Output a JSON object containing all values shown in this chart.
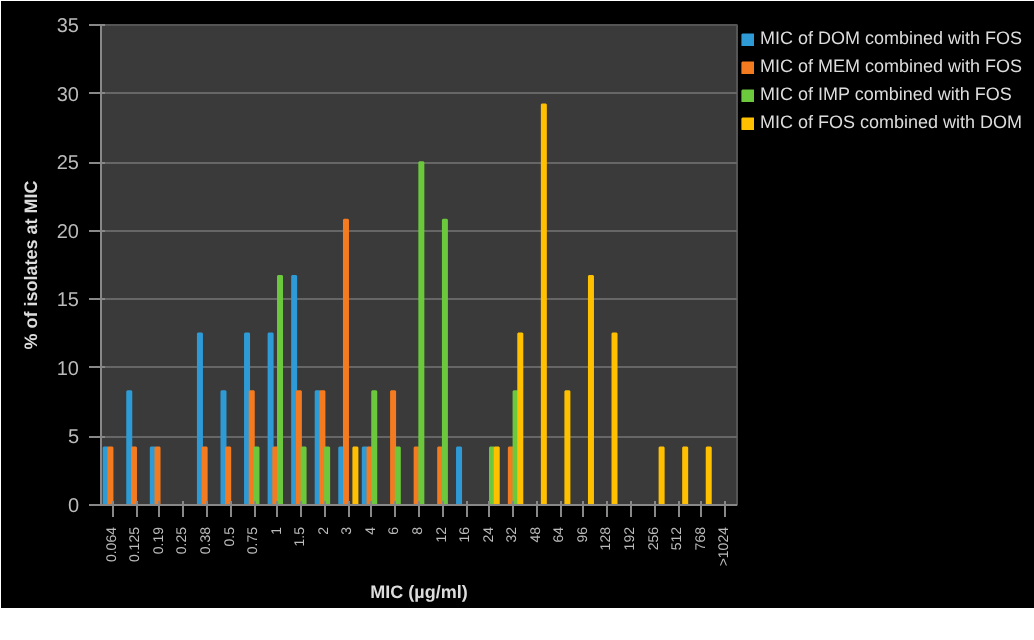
{
  "chart_data": {
    "type": "bar",
    "ylabel": "% of isolates at MIC",
    "xlabel": "MIC (µg/ml)",
    "categories": [
      "0.064",
      "0.125",
      "0.19",
      "0.25",
      "0.38",
      "0.5",
      "0.75",
      "1",
      "1.5",
      "2",
      "3",
      "4",
      "6",
      "8",
      "12",
      "16",
      "24",
      "32",
      "48",
      "64",
      "96",
      "128",
      "192",
      "256",
      "512",
      "768",
      ">1024"
    ],
    "series": [
      {
        "name": "MIC of DOM combined with FOS",
        "color": "#2e9bd6",
        "values": [
          4.2,
          8.3,
          4.2,
          0,
          12.5,
          8.3,
          12.5,
          12.5,
          16.7,
          8.3,
          4.2,
          4.2,
          0,
          0,
          0,
          4.2,
          0,
          0,
          0,
          0,
          0,
          0,
          0,
          0,
          0,
          0,
          0
        ]
      },
      {
        "name": "MIC of MEM combined with FOS",
        "color": "#f47b20",
        "values": [
          4.2,
          4.2,
          4.2,
          0,
          4.2,
          4.2,
          8.3,
          4.2,
          8.3,
          8.3,
          20.8,
          4.2,
          8.3,
          4.2,
          4.2,
          0,
          0,
          4.2,
          0,
          0,
          0,
          0,
          0,
          0,
          0,
          0,
          0
        ]
      },
      {
        "name": "MIC of IMP combined with FOS",
        "color": "#6cc83c",
        "values": [
          0,
          0,
          0,
          0,
          0,
          0,
          4.2,
          16.7,
          4.2,
          4.2,
          0,
          8.3,
          4.2,
          25,
          20.8,
          0,
          4.2,
          8.3,
          0,
          0,
          0,
          0,
          0,
          0,
          0,
          0,
          0
        ]
      },
      {
        "name": "MIC of FOS combined with DOM",
        "color": "#ffc000",
        "values": [
          0,
          0,
          0,
          0,
          0,
          0,
          0,
          0,
          0,
          0,
          4.2,
          0,
          0,
          0,
          0,
          0,
          4.2,
          12.5,
          29.2,
          8.3,
          16.7,
          12.5,
          0,
          4.2,
          4.2,
          4.2,
          0
        ]
      }
    ],
    "ylim": [
      0,
      35
    ],
    "yticks": [
      0,
      5,
      10,
      15,
      20,
      25,
      30,
      35
    ],
    "grid": "y",
    "legend": "right"
  }
}
